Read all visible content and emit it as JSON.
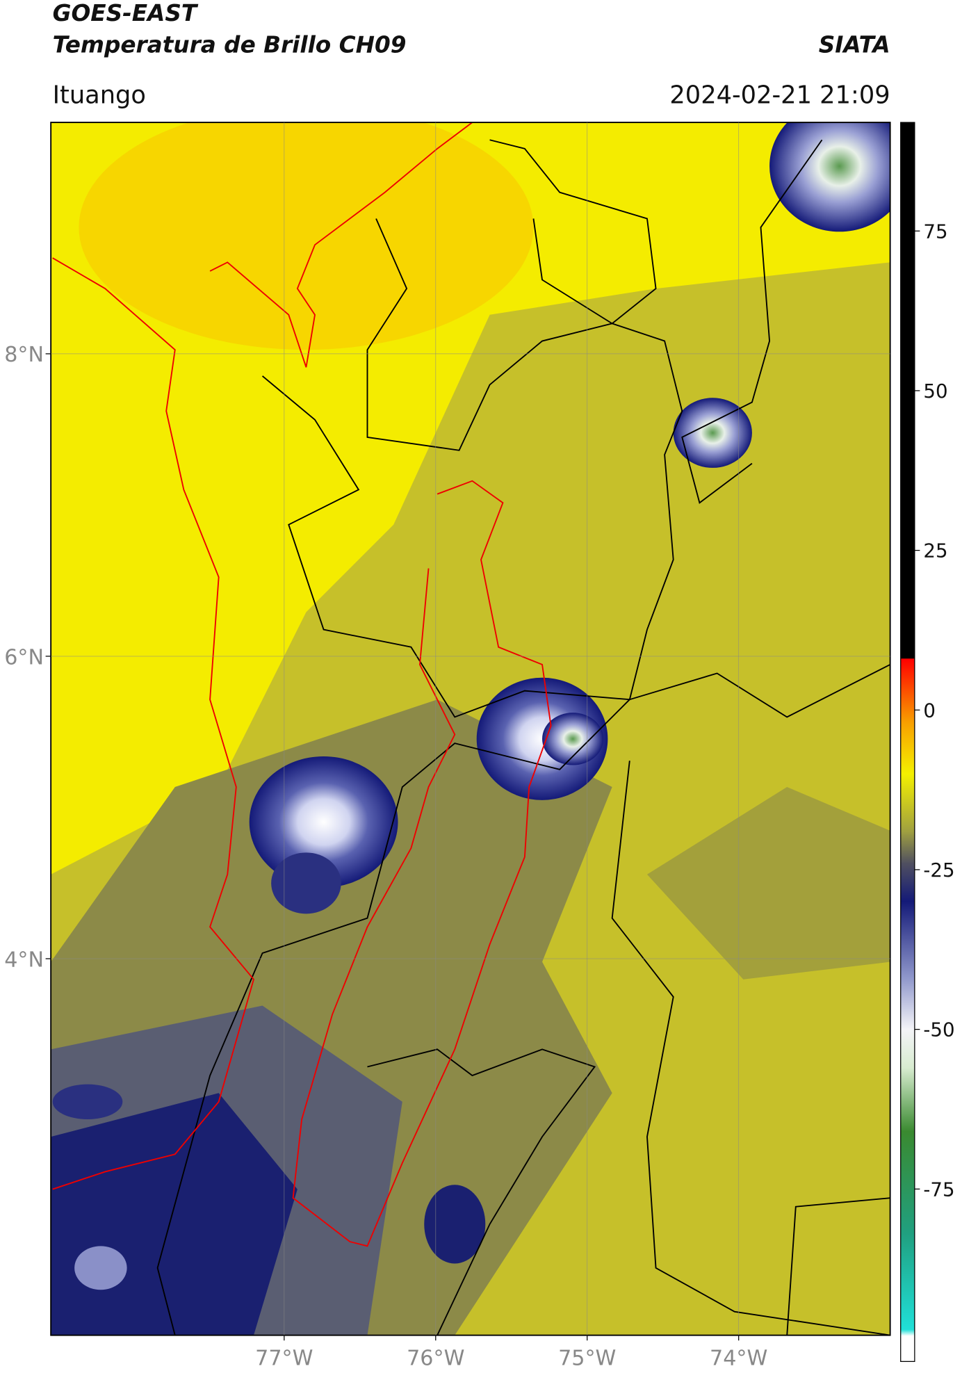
{
  "header": {
    "title": "GOES-EAST",
    "subtitle": "Temperatura de Brillo CH09",
    "source": "SIATA",
    "location": "Ituango",
    "datetime": "2024-02-21 21:09"
  },
  "map": {
    "xlim": [
      -78.54,
      -73.0
    ],
    "ylim": [
      1.51,
      9.53
    ],
    "xticks": [
      {
        "value": -77,
        "label": "77°W"
      },
      {
        "value": -76,
        "label": "76°W"
      },
      {
        "value": -75,
        "label": "75°W"
      },
      {
        "value": -74,
        "label": "74°W"
      }
    ],
    "yticks": [
      {
        "value": 8,
        "label": "8°N"
      },
      {
        "value": 6,
        "label": "6°N"
      },
      {
        "value": 4,
        "label": "4°N"
      }
    ],
    "grid": true
  },
  "colorbar": {
    "lim": [
      -102,
      92
    ],
    "ticks": [
      75,
      50,
      25,
      0,
      -25,
      -50,
      -75
    ],
    "stops": [
      {
        "value": -102,
        "color": "#ffffff"
      },
      {
        "value": -98,
        "color": "#ffffff"
      },
      {
        "value": -97,
        "color": "#20e0d8"
      },
      {
        "value": -82,
        "color": "#20a080"
      },
      {
        "value": -66,
        "color": "#3a8a30"
      },
      {
        "value": -56,
        "color": "#d8ecd0"
      },
      {
        "value": -50,
        "color": "#f4f4f8"
      },
      {
        "value": -42,
        "color": "#9098cc"
      },
      {
        "value": -30,
        "color": "#141a78"
      },
      {
        "value": -24,
        "color": "#505060"
      },
      {
        "value": -19,
        "color": "#a0a040"
      },
      {
        "value": -10,
        "color": "#f4f000"
      },
      {
        "value": -2,
        "color": "#f8a000"
      },
      {
        "value": 8,
        "color": "#ff0000"
      },
      {
        "value": 8.1,
        "color": "#000000"
      },
      {
        "value": 92,
        "color": "#000000"
      }
    ]
  }
}
